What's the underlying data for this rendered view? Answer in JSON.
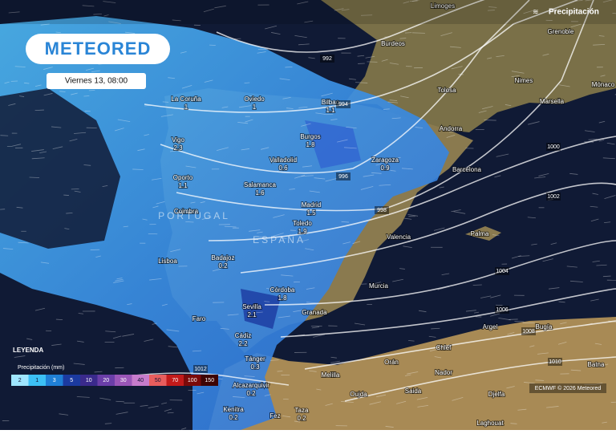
{
  "header": {
    "layer": "Precipitación"
  },
  "logo": "METEORED",
  "date": "Viernes 13, 08:00",
  "cities": [
    {
      "name": "La Coruña",
      "value": 1
    },
    {
      "name": "Oviedo",
      "value": 1
    },
    {
      "name": "Bilbao",
      "value": 1.1
    },
    {
      "name": "Vigo",
      "value": 2.3
    },
    {
      "name": "Burgos",
      "value": 1.8
    },
    {
      "name": "Valladolid",
      "value": 0.6
    },
    {
      "name": "Zaragoza",
      "value": 0.9
    },
    {
      "name": "Oporto",
      "value": 1.1
    },
    {
      "name": "Salamanca",
      "value": 1.6
    },
    {
      "name": "Madrid",
      "value": 1.5
    },
    {
      "name": "Toledo",
      "value": 1.9
    },
    {
      "name": "Badajoz",
      "value": 0.2
    },
    {
      "name": "Córdoba",
      "value": 1.8
    },
    {
      "name": "Sevilla",
      "value": 2.1
    },
    {
      "name": "Cádiz",
      "value": 2.2
    },
    {
      "name": "Tánger",
      "value": 0.3
    },
    {
      "name": "Alcazarquivir",
      "value": 0.2
    },
    {
      "name": "Kenitra",
      "value": 0.2
    },
    {
      "name": "Taza",
      "value": 0.2
    }
  ],
  "places": [
    "Limoges",
    "Burdeos",
    "Grenoble",
    "Tolosa",
    "Nimes",
    "Marsella",
    "Mónaco",
    "Andorra",
    "Barcelona",
    "Valencia",
    "Palma",
    "Murcia",
    "Granada",
    "Faro",
    "Coimbra",
    "Lisboa",
    "Argel",
    "Bugía",
    "Chlef",
    "Orán",
    "Melilla",
    "Nador",
    "Oujda",
    "Saida",
    "Djelfa",
    "Laghouat",
    "Batna",
    "Fez"
  ],
  "countries": [
    "PORTUGAL",
    "ESPAÑA"
  ],
  "isobars": [
    "992",
    "994",
    "996",
    "998",
    "1000",
    "1002",
    "1004",
    "1006",
    "1008",
    "1010",
    "1012"
  ],
  "legend": {
    "title": "LEYENDA",
    "subtitle": "Precipitación (mm)",
    "steps": [
      {
        "label": 2,
        "color": "#9fe6ff"
      },
      {
        "label": 1,
        "color": "#3cc0f5"
      },
      {
        "label": 3,
        "color": "#1f7fd6"
      },
      {
        "label": 5,
        "color": "#1b3aa0"
      },
      {
        "label": 10,
        "color": "#3a2a8c"
      },
      {
        "label": 20,
        "color": "#6a3ea8"
      },
      {
        "label": 30,
        "color": "#9a56b8"
      },
      {
        "label": 40,
        "color": "#c77ccc"
      },
      {
        "label": 50,
        "color": "#e85d5d"
      },
      {
        "label": 70,
        "color": "#c21a1a"
      },
      {
        "label": 100,
        "color": "#7a0a0a"
      },
      {
        "label": 150,
        "color": "#3d0404"
      }
    ]
  },
  "credit": "ECMWF © 2026 Meteored"
}
